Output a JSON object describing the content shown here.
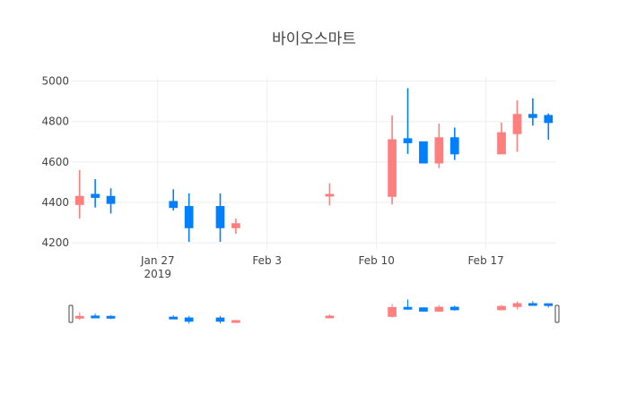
{
  "chart_data": {
    "type": "candlestick",
    "title": "바이오스마트",
    "xlabel": "",
    "ylabel": "",
    "ylim": [
      4170,
      5020
    ],
    "grid": true,
    "legend": "none",
    "colors": {
      "increasing": "#ff7f7f",
      "decreasing": "#007fff"
    },
    "x_ticks": [
      {
        "date": "2019-01-27",
        "label": "Jan 27",
        "sublabel": "2019"
      },
      {
        "date": "2019-02-03",
        "label": "Feb 3"
      },
      {
        "date": "2019-02-10",
        "label": "Feb 10"
      },
      {
        "date": "2019-02-17",
        "label": "Feb 17"
      }
    ],
    "y_ticks": [
      4200,
      4400,
      4600,
      4800,
      5000
    ],
    "range_slider": true,
    "candles": [
      {
        "date": "2019-01-22",
        "open": 4390,
        "high": 4560,
        "low": 4320,
        "close": 4430
      },
      {
        "date": "2019-01-23",
        "open": 4440,
        "high": 4515,
        "low": 4375,
        "close": 4425
      },
      {
        "date": "2019-01-24",
        "open": 4430,
        "high": 4470,
        "low": 4345,
        "close": 4395
      },
      {
        "date": "2019-01-28",
        "open": 4405,
        "high": 4465,
        "low": 4360,
        "close": 4375
      },
      {
        "date": "2019-01-29",
        "open": 4380,
        "high": 4445,
        "low": 4205,
        "close": 4275
      },
      {
        "date": "2019-01-31",
        "open": 4380,
        "high": 4445,
        "low": 4205,
        "close": 4275
      },
      {
        "date": "2019-02-01",
        "open": 4275,
        "high": 4320,
        "low": 4245,
        "close": 4295
      },
      {
        "date": "2019-02-07",
        "open": 4435,
        "high": 4495,
        "low": 4385,
        "close": 4440
      },
      {
        "date": "2019-02-11",
        "open": 4430,
        "high": 4830,
        "low": 4390,
        "close": 4710
      },
      {
        "date": "2019-02-12",
        "open": 4715,
        "high": 4965,
        "low": 4640,
        "close": 4695
      },
      {
        "date": "2019-02-13",
        "open": 4700,
        "high": 4700,
        "low": 4595,
        "close": 4595
      },
      {
        "date": "2019-02-14",
        "open": 4595,
        "high": 4790,
        "low": 4570,
        "close": 4720
      },
      {
        "date": "2019-02-15",
        "open": 4720,
        "high": 4770,
        "low": 4610,
        "close": 4640
      },
      {
        "date": "2019-02-18",
        "open": 4640,
        "high": 4795,
        "low": 4640,
        "close": 4745
      },
      {
        "date": "2019-02-19",
        "open": 4740,
        "high": 4905,
        "low": 4650,
        "close": 4835
      },
      {
        "date": "2019-02-20",
        "open": 4835,
        "high": 4915,
        "low": 4780,
        "close": 4820
      },
      {
        "date": "2019-02-21",
        "open": 4830,
        "high": 4840,
        "low": 4710,
        "close": 4795
      }
    ]
  }
}
